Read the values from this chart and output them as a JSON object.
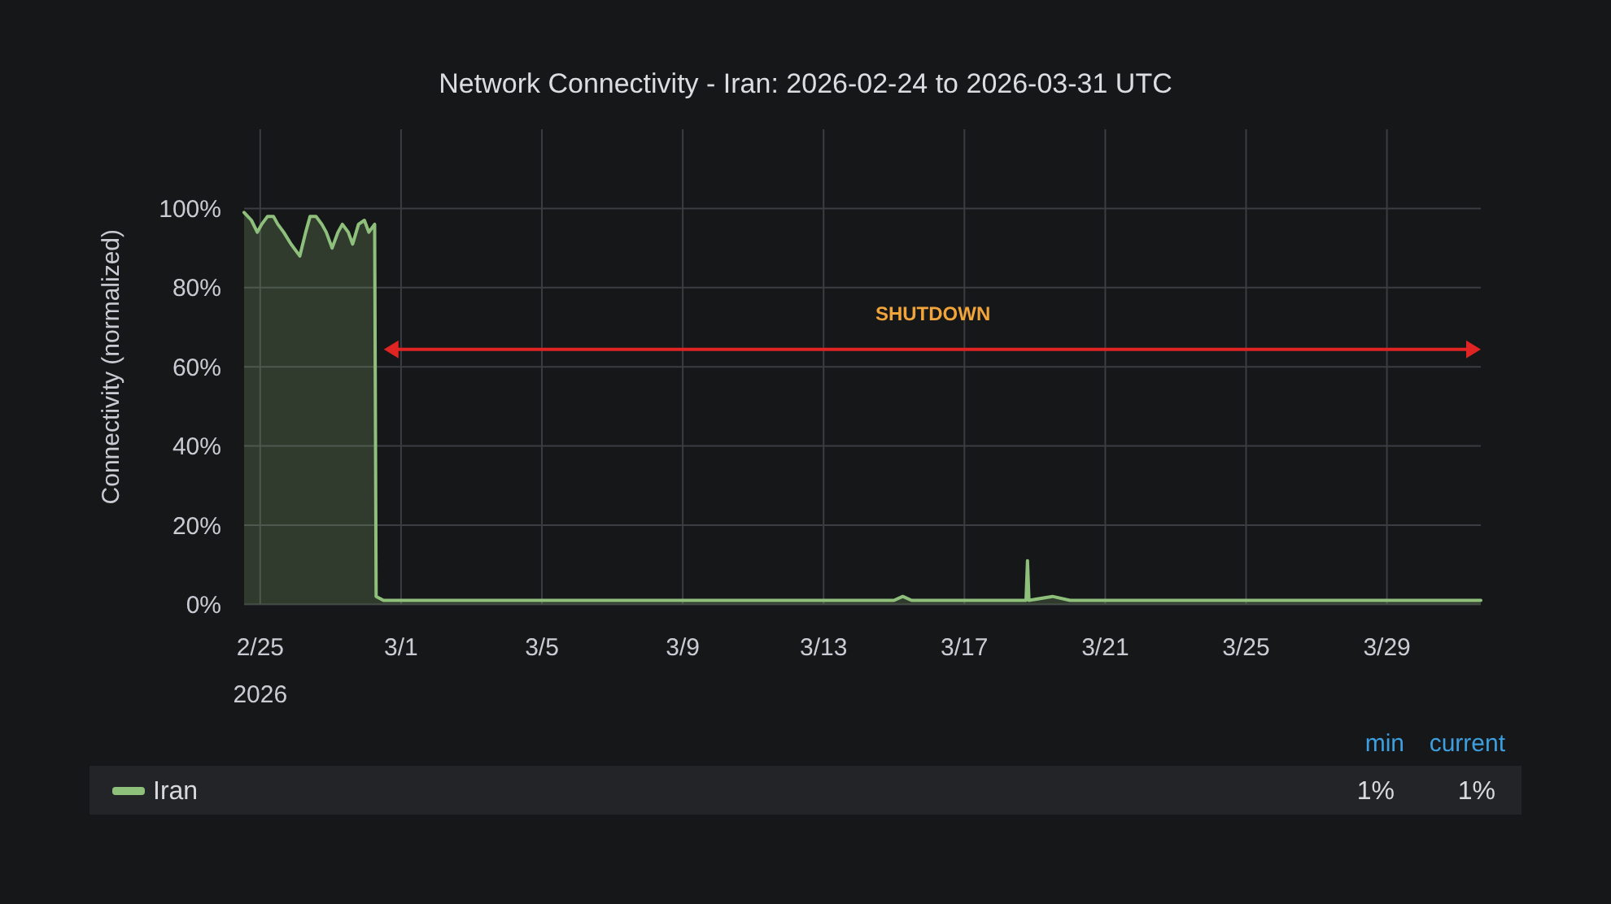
{
  "chart_data": {
    "type": "area",
    "title": "Network Connectivity - Iran: 2026-02-24 to 2026-03-31 UTC",
    "ylabel": "Connectivity (normalized)",
    "series": [
      {
        "name": "Iran",
        "color": "#8ec07c",
        "x": [
          "2026-02-24T13:00",
          "2026-02-24T18:00",
          "2026-02-24T22:00",
          "2026-02-25T01:00",
          "2026-02-25T05:00",
          "2026-02-25T09:00",
          "2026-02-25T12:00",
          "2026-02-25T16:00",
          "2026-02-25T21:00",
          "2026-02-26T03:00",
          "2026-02-26T07:00",
          "2026-02-26T10:00",
          "2026-02-26T14:00",
          "2026-02-26T18:00",
          "2026-02-26T21:00",
          "2026-02-27T01:00",
          "2026-02-27T05:00",
          "2026-02-27T08:00",
          "2026-02-27T12:00",
          "2026-02-27T15:00",
          "2026-02-27T19:00",
          "2026-02-27T23:00",
          "2026-02-28T02:00",
          "2026-02-28T06:00",
          "2026-02-28T07:00",
          "2026-02-28T12:00",
          "2026-03-02",
          "2026-03-05",
          "2026-03-09",
          "2026-03-13",
          "2026-03-15T00:00",
          "2026-03-15T06:00",
          "2026-03-15T12:00",
          "2026-03-18T18:00",
          "2026-03-18T19:00",
          "2026-03-18T20:00",
          "2026-03-19T12:00",
          "2026-03-20",
          "2026-03-25",
          "2026-03-31T16:00"
        ],
        "values": [
          99,
          97,
          94,
          96,
          98,
          98,
          96,
          94,
          91,
          88,
          94,
          98,
          98,
          96,
          94,
          90,
          94,
          96,
          94,
          91,
          96,
          97,
          94,
          96,
          2,
          1,
          1,
          1,
          1,
          1,
          1,
          2,
          1,
          1,
          11,
          1,
          2,
          1,
          1,
          1
        ]
      }
    ],
    "xlim": [
      "2026-02-24T13:00",
      "2026-03-31T16:00"
    ],
    "xticks": [
      {
        "value": "2026-02-25",
        "label": "2/25\n2026"
      },
      {
        "value": "2026-03-01",
        "label": "3/1"
      },
      {
        "value": "2026-03-05",
        "label": "3/5"
      },
      {
        "value": "2026-03-09",
        "label": "3/9"
      },
      {
        "value": "2026-03-13",
        "label": "3/13"
      },
      {
        "value": "2026-03-17",
        "label": "3/17"
      },
      {
        "value": "2026-03-21",
        "label": "3/21"
      },
      {
        "value": "2026-03-25",
        "label": "3/25"
      },
      {
        "value": "2026-03-29",
        "label": "3/29"
      }
    ],
    "ylim": [
      0,
      120
    ],
    "yticks": [
      {
        "value": 0,
        "label": "0%"
      },
      {
        "value": 20,
        "label": "20%"
      },
      {
        "value": 40,
        "label": "40%"
      },
      {
        "value": 60,
        "label": "60%"
      },
      {
        "value": 80,
        "label": "80%"
      },
      {
        "value": 100,
        "label": "100%"
      }
    ],
    "grid": true,
    "legend": "bottom",
    "annotations": [
      "SHUTDOWN",
      "min",
      "current",
      "1%",
      "1%"
    ]
  }
}
